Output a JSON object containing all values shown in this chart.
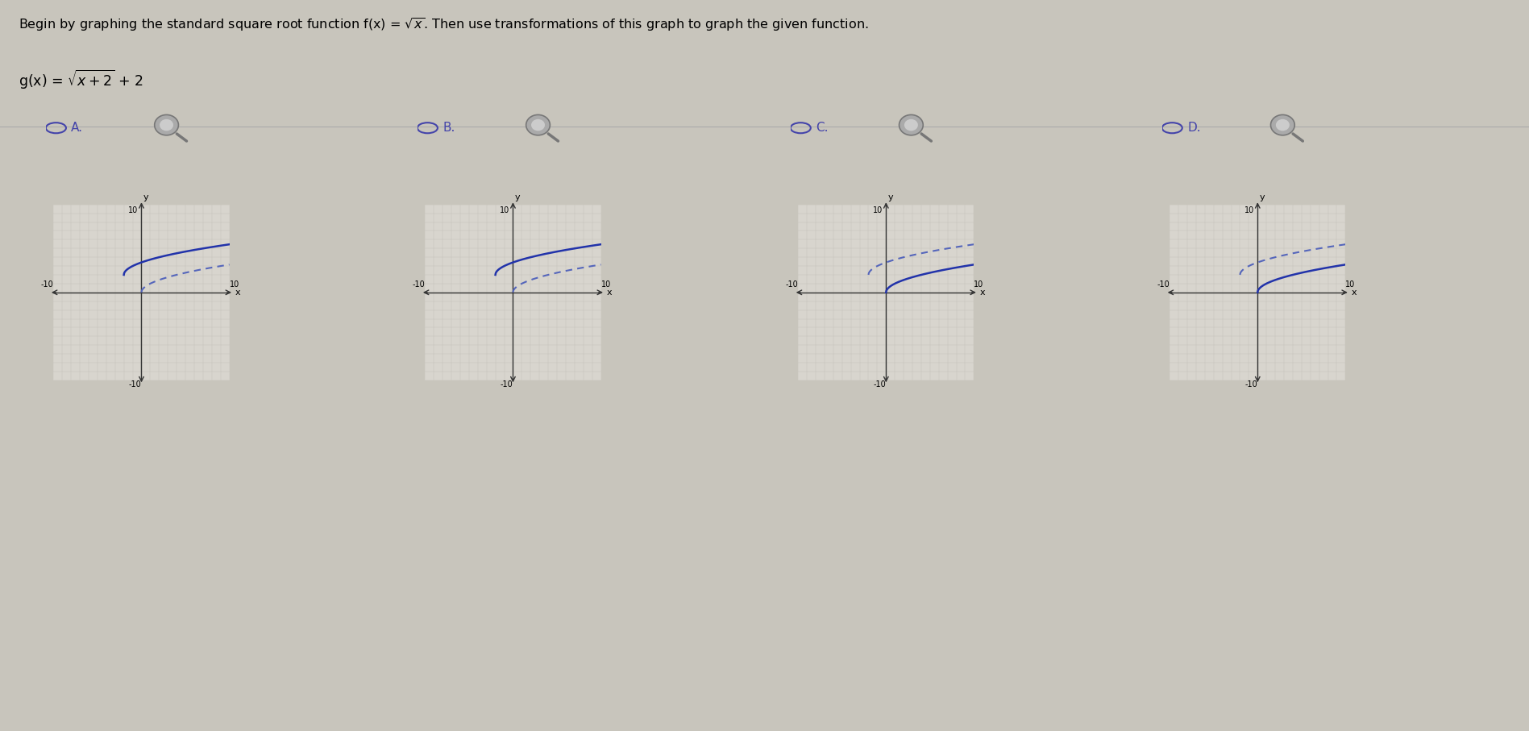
{
  "bg_color": "#c8c5bc",
  "upper_bg": "#e8e6e0",
  "graph_bg": "#d8d5ce",
  "grid_color": "#b8b5ae",
  "title1": "Begin by graphing the standard square root function f(x) = ",
  "title2": ". Then use transformations of this graph to graph the given function.",
  "gx_label": "g(x) = ",
  "gx_formula": "x+2",
  "gx_suffix": " +2",
  "options": [
    "A.",
    "B.",
    "C.",
    "D."
  ],
  "option_color": "#4444aa",
  "curve_solid_color": "#2233aa",
  "curve_dashed_color": "#5566bb",
  "xlim": [
    -10,
    10
  ],
  "ylim": [
    -10,
    10
  ],
  "graphs": [
    {
      "label": "A.",
      "solid_x_start": -2,
      "solid_shift_x": -2,
      "solid_shift_y": 2,
      "dashed_x_start": 0,
      "dashed_shift_x": 0,
      "dashed_shift_y": 0
    },
    {
      "label": "B.",
      "solid_x_start": -2,
      "solid_shift_x": -2,
      "solid_shift_y": 2,
      "dashed_x_start": 0,
      "dashed_shift_x": 0,
      "dashed_shift_y": 0
    },
    {
      "label": "C.",
      "solid_x_start": 0,
      "solid_shift_x": 0,
      "solid_shift_y": 0,
      "dashed_x_start": -2,
      "dashed_shift_x": -2,
      "dashed_shift_y": 2
    },
    {
      "label": "D.",
      "solid_x_start": 0,
      "solid_shift_x": 0,
      "solid_shift_y": 0,
      "dashed_x_start": -2,
      "dashed_shift_x": -2,
      "dashed_shift_y": 2
    }
  ],
  "fig_width": 18.97,
  "fig_height": 9.07,
  "dpi": 100
}
